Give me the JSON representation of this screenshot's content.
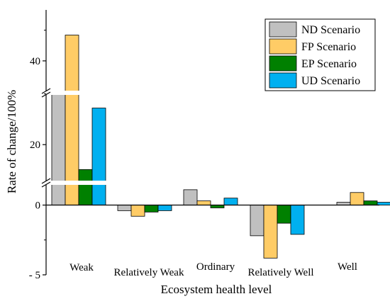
{
  "chart_data": {
    "type": "bar",
    "xlabel": "Ecosystem health level",
    "ylabel": "Rate of change/100%",
    "categories": [
      "Weak",
      "Relatively Weak",
      "Ordinary",
      "Relatively Well",
      "Well"
    ],
    "series": [
      {
        "name": "ND Scenario",
        "color": "#c0c0c0",
        "values": [
          30.5,
          -0.4,
          1.1,
          -2.2,
          0.2
        ]
      },
      {
        "name": "FP Scenario",
        "color": "#ffcc66",
        "values": [
          44.2,
          -0.8,
          0.3,
          -3.8,
          0.9
        ]
      },
      {
        "name": "EP Scenario",
        "color": "#008000",
        "values": [
          15.1,
          -0.5,
          -0.2,
          -1.3,
          0.3
        ]
      },
      {
        "name": "UD Scenario",
        "color": "#00b0f0",
        "values": [
          27.2,
          -0.4,
          0.5,
          -2.1,
          0.2
        ]
      }
    ],
    "yticks": [
      -5,
      0,
      20,
      40
    ],
    "ytick_labels": [
      "- 5",
      "0",
      "20",
      "40"
    ],
    "axis_breaks": [
      [
        1.6,
        12.5
      ],
      [
        30.2,
        34.8
      ]
    ],
    "legend_position": "top-right",
    "grid": false
  }
}
